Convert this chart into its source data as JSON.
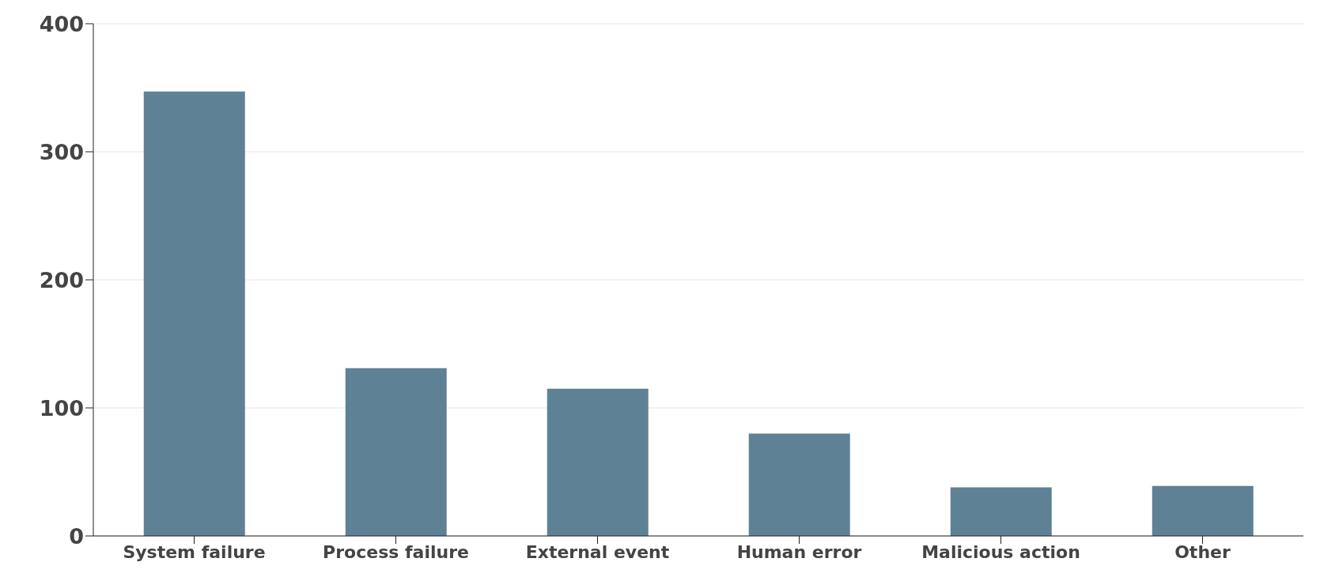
{
  "chart_data": {
    "type": "bar",
    "categories": [
      "System failure",
      "Process failure",
      "External event",
      "Human error",
      "Malicious action",
      "Other"
    ],
    "values": [
      347,
      131,
      115,
      80,
      38,
      39
    ],
    "color": "#5f8196",
    "ylim": [
      0,
      400
    ],
    "yticks": [
      0,
      100,
      200,
      300,
      400
    ],
    "grid": "y"
  }
}
